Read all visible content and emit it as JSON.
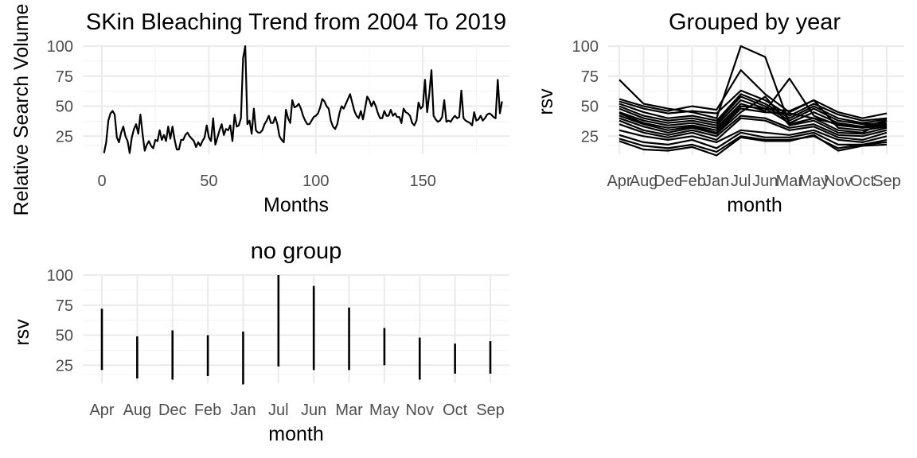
{
  "chart_data": [
    {
      "type": "line",
      "title": "SKin Bleaching Trend from 2004 To 2019",
      "xlabel": "Months",
      "ylabel": "Relative Search Volume",
      "xlim": [
        0,
        186
      ],
      "ylim": [
        10,
        100
      ],
      "xticks": [
        0,
        50,
        100,
        150
      ],
      "yticks": [
        25,
        50,
        75,
        100
      ],
      "grid": true,
      "series": [
        {
          "x_start": 1,
          "values": [
            11,
            20,
            38,
            44,
            46,
            43,
            24,
            20,
            28,
            33,
            25,
            21,
            11,
            24,
            31,
            35,
            27,
            43,
            27,
            13,
            18,
            21,
            17,
            15,
            22,
            21,
            30,
            22,
            26,
            21,
            33,
            23,
            33,
            22,
            14,
            14,
            22,
            22,
            26,
            28,
            25,
            23,
            21,
            16,
            20,
            17,
            21,
            24,
            34,
            24,
            21,
            40,
            18,
            24,
            30,
            35,
            26,
            31,
            30,
            34,
            21,
            43,
            33,
            34,
            40,
            90,
            100,
            35,
            38,
            27,
            48,
            30,
            28,
            28,
            30,
            35,
            38,
            42,
            36,
            36,
            41,
            35,
            25,
            22,
            20,
            47,
            40,
            36,
            55,
            49,
            50,
            52,
            48,
            42,
            38,
            35,
            35,
            38,
            41,
            42,
            44,
            49,
            56,
            54,
            50,
            48,
            38,
            33,
            31,
            35,
            44,
            50,
            48,
            52,
            56,
            60,
            53,
            46,
            42,
            40,
            46,
            39,
            48,
            58,
            55,
            50,
            54,
            50,
            44,
            40,
            40,
            46,
            42,
            42,
            47,
            42,
            44,
            41,
            41,
            36,
            48,
            45,
            44,
            42,
            36,
            34,
            38,
            53,
            48,
            50,
            72,
            45,
            60,
            80,
            42,
            39,
            37,
            38,
            41,
            55,
            37,
            38,
            37,
            40,
            42,
            40,
            41,
            63,
            40,
            38,
            37,
            36,
            34,
            45,
            38,
            39,
            42,
            38,
            40,
            43,
            44,
            43,
            41,
            40,
            72,
            44,
            54
          ]
        }
      ]
    },
    {
      "type": "line",
      "title": "Grouped by year",
      "xlabel": "month",
      "ylabel": "rsv",
      "ylim": [
        10,
        100
      ],
      "yticks": [
        25,
        50,
        75,
        100
      ],
      "grid": true,
      "categories": [
        "Apr",
        "Aug",
        "Dec",
        "Feb",
        "Jan",
        "Jul",
        "Jun",
        "Mar",
        "May",
        "Nov",
        "Oct",
        "Sep"
      ],
      "series": [
        {
          "values": [
            72,
            52,
            48,
            45,
            40,
            100,
            91,
            35,
            40,
            35,
            33,
            38
          ]
        },
        {
          "values": [
            56,
            50,
            46,
            50,
            47,
            80,
            60,
            45,
            55,
            45,
            40,
            44
          ]
        },
        {
          "values": [
            54,
            48,
            44,
            46,
            44,
            63,
            55,
            42,
            52,
            43,
            38,
            40
          ]
        },
        {
          "values": [
            52,
            45,
            40,
            42,
            38,
            60,
            52,
            40,
            50,
            40,
            36,
            39
          ]
        },
        {
          "values": [
            50,
            42,
            38,
            40,
            36,
            58,
            50,
            38,
            48,
            38,
            35,
            36
          ]
        },
        {
          "values": [
            48,
            40,
            36,
            38,
            34,
            55,
            48,
            36,
            45,
            36,
            33,
            35
          ]
        },
        {
          "values": [
            45,
            38,
            34,
            36,
            32,
            52,
            46,
            73,
            42,
            34,
            32,
            34
          ]
        },
        {
          "values": [
            44,
            36,
            32,
            34,
            30,
            50,
            48,
            46,
            55,
            32,
            30,
            33
          ]
        },
        {
          "values": [
            42,
            35,
            30,
            33,
            28,
            48,
            45,
            44,
            40,
            30,
            28,
            38
          ]
        },
        {
          "values": [
            40,
            33,
            28,
            32,
            27,
            45,
            58,
            34,
            38,
            28,
            27,
            32
          ]
        },
        {
          "values": [
            38,
            30,
            26,
            30,
            25,
            42,
            40,
            32,
            35,
            26,
            25,
            30
          ]
        },
        {
          "values": [
            35,
            28,
            24,
            28,
            22,
            40,
            38,
            30,
            33,
            24,
            22,
            28
          ]
        },
        {
          "values": [
            30,
            25,
            22,
            25,
            20,
            30,
            28,
            26,
            30,
            22,
            20,
            25
          ]
        },
        {
          "values": [
            26,
            20,
            18,
            22,
            15,
            28,
            24,
            24,
            28,
            18,
            18,
            22
          ]
        },
        {
          "values": [
            23,
            17,
            15,
            18,
            12,
            25,
            22,
            22,
            25,
            15,
            18,
            20
          ]
        },
        {
          "values": [
            21,
            14,
            13,
            16,
            9,
            24,
            21,
            21,
            26,
            13,
            17,
            18
          ]
        }
      ]
    },
    {
      "type": "range",
      "title": "no group",
      "xlabel": "month",
      "ylabel": "rsv",
      "ylim": [
        10,
        100
      ],
      "yticks": [
        25,
        50,
        75,
        100
      ],
      "grid": true,
      "categories": [
        "Apr",
        "Aug",
        "Dec",
        "Feb",
        "Jan",
        "Jul",
        "Jun",
        "Mar",
        "May",
        "Nov",
        "Oct",
        "Sep"
      ],
      "low": [
        21,
        14,
        13,
        16,
        9,
        24,
        21,
        21,
        25,
        13,
        18,
        18
      ],
      "high": [
        72,
        49,
        54,
        50,
        53,
        100,
        91,
        73,
        56,
        48,
        43,
        45
      ]
    }
  ]
}
